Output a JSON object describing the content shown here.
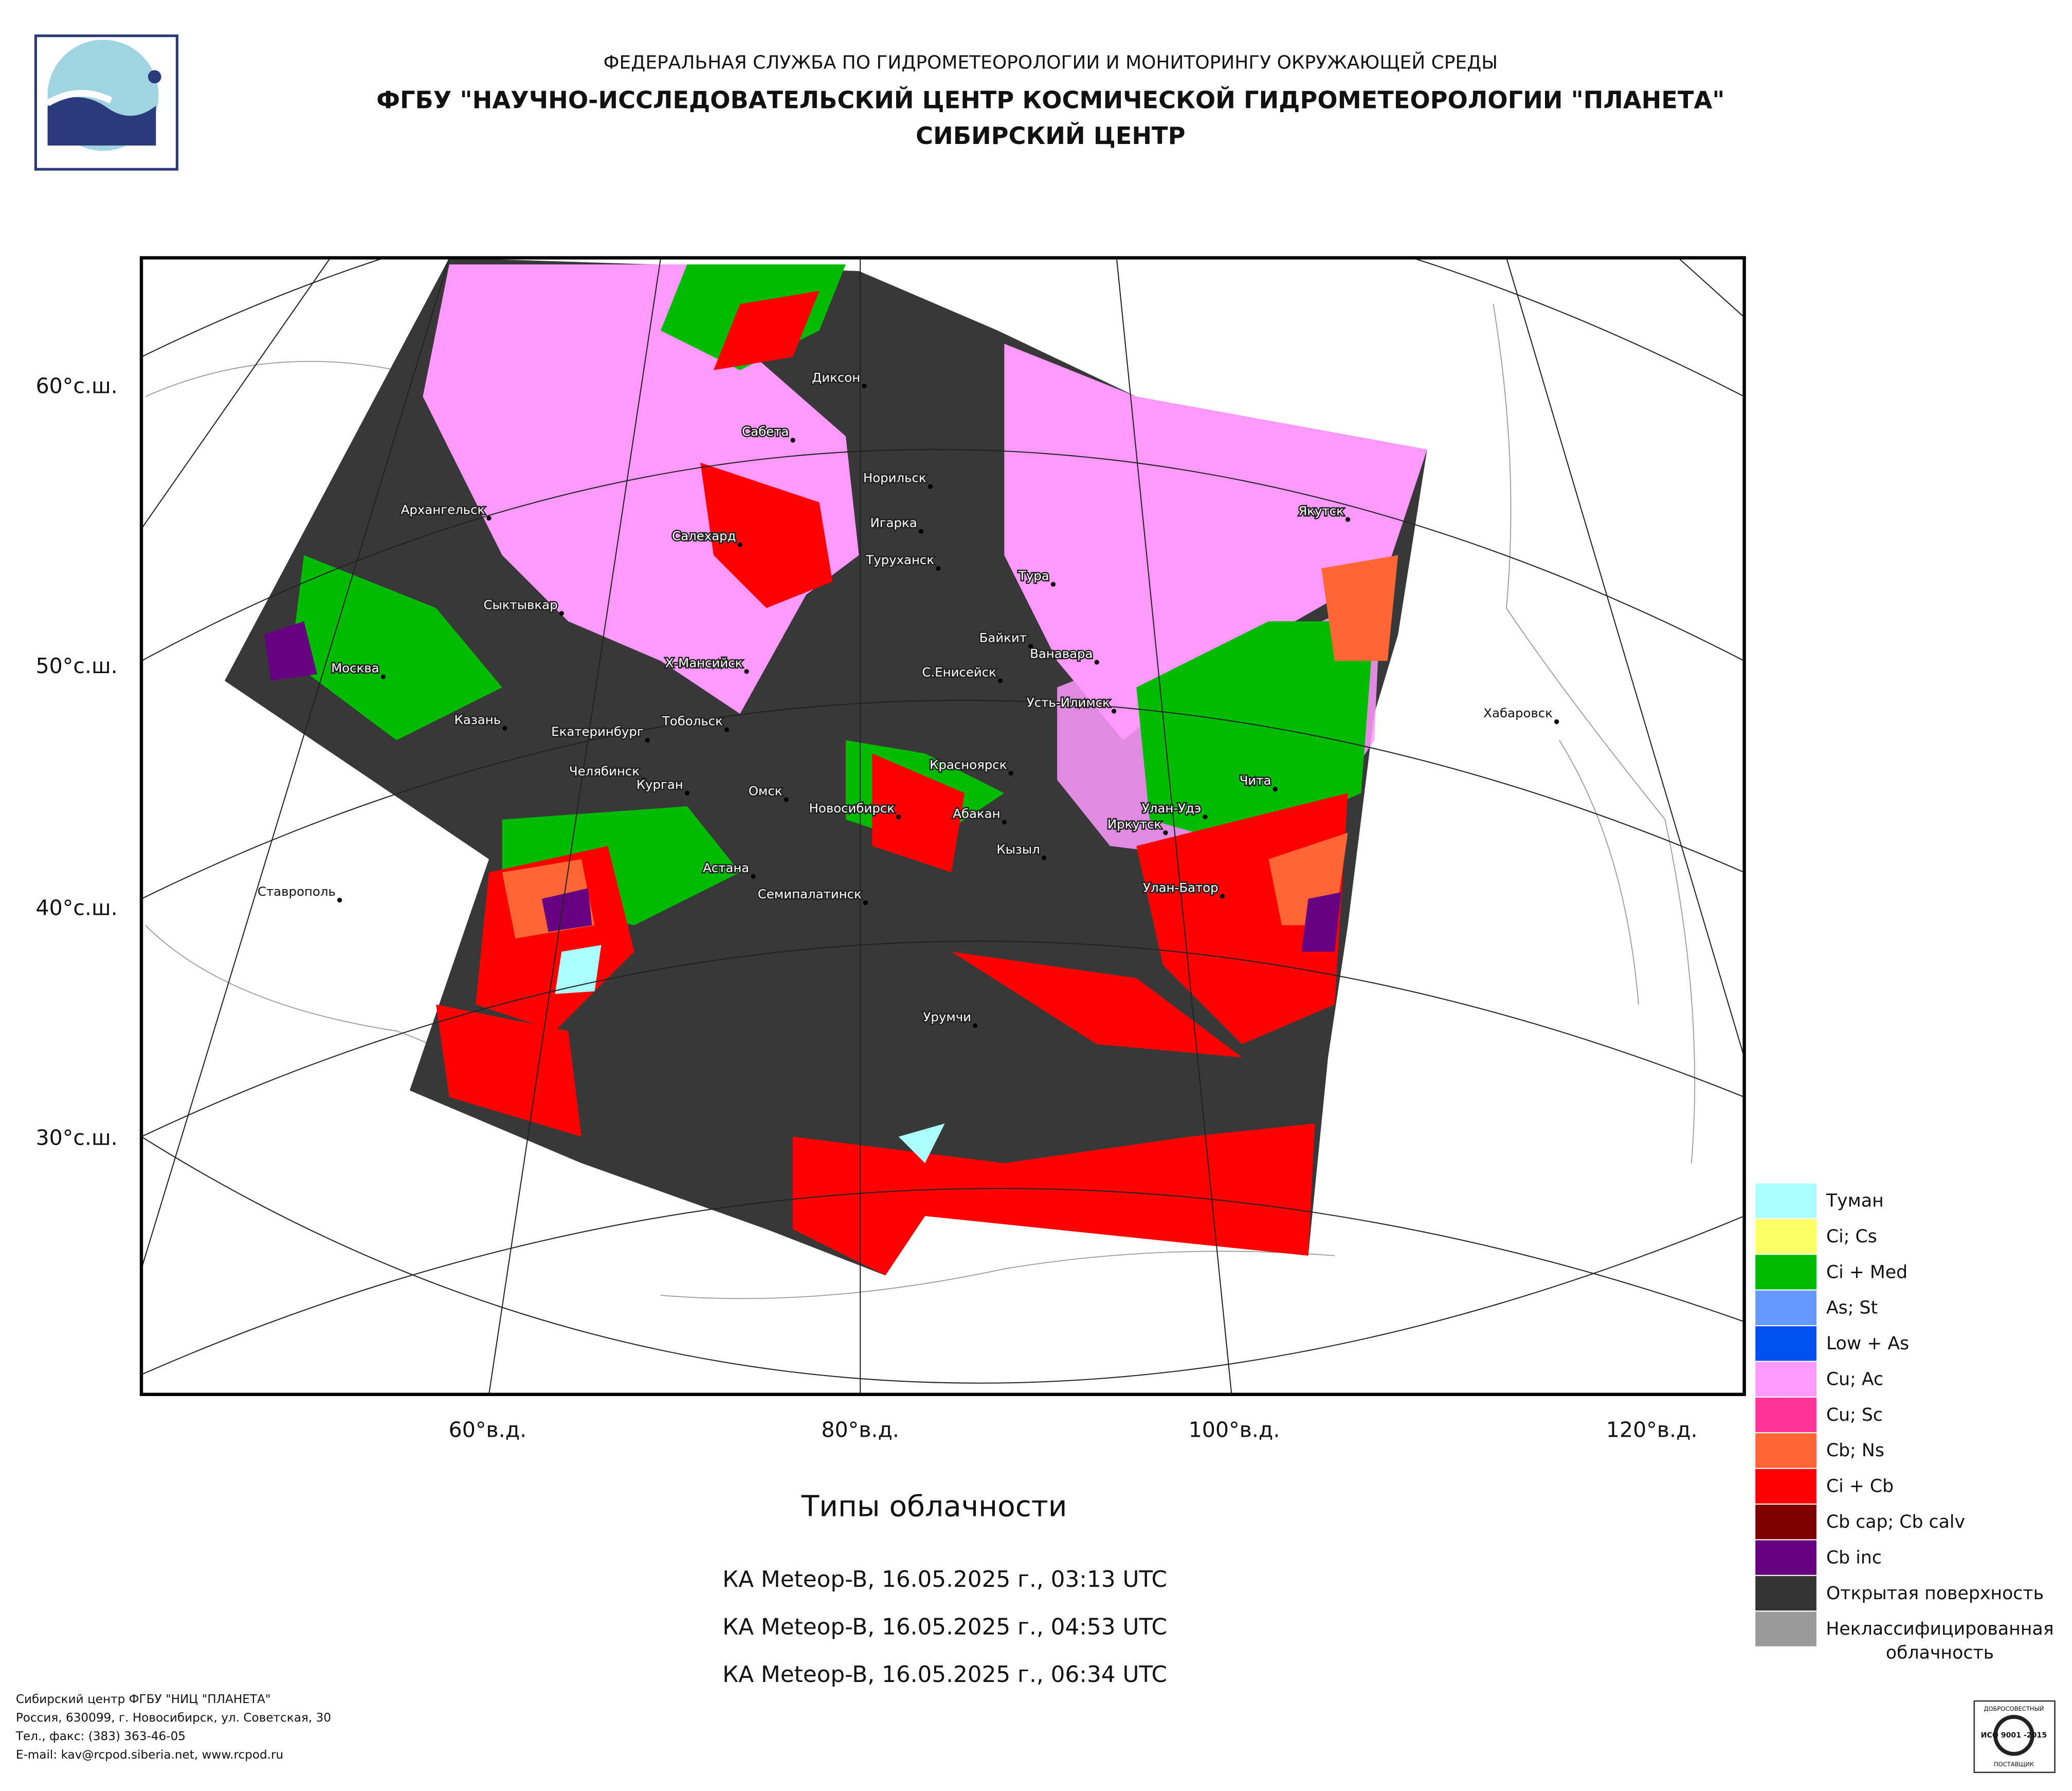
{
  "header": {
    "agency": "ФЕДЕРАЛЬНАЯ СЛУЖБА ПО ГИДРОМЕТЕОРОЛОГИИ И МОНИТОРИНГУ ОКРУЖАЮЩЕЙ СРЕДЫ",
    "institute": "ФГБУ \"НАУЧНО-ИССЛЕДОВАТЕЛЬСКИЙ ЦЕНТР КОСМИЧЕСКОЙ ГИДРОМЕТЕОРОЛОГИИ \"ПЛАНЕТА\"",
    "center": "СИБИРСКИЙ ЦЕНТР"
  },
  "map": {
    "lat_labels": [
      "60°с.ш.",
      "50°с.ш.",
      "40°с.ш.",
      "30°с.ш."
    ],
    "lon_labels": [
      "60°в.д.",
      "80°в.д.",
      "100°в.д.",
      "120°в.д."
    ],
    "cities": [
      "Диксон",
      "Сабета",
      "Норильск",
      "Архангельск",
      "Игарка",
      "Салехард",
      "Туруханск",
      "Тура",
      "Сыктывкар",
      "Байкит",
      "Ванавара",
      "Х-Мансийск",
      "С.Енисейск",
      "Москва",
      "Усть-Илимск",
      "Казань",
      "Тобольск",
      "Екатеринбург",
      "Челябинск",
      "Красноярск",
      "Курган",
      "Чита",
      "Омск",
      "Новосибирск",
      "Улан-Удэ",
      "Абакан",
      "Иркутск",
      "Кызыл",
      "Астана",
      "Ставрополь",
      "Улан-Батор",
      "Семипалатинск",
      "Хабаровск",
      "Якутск",
      "Урумчи"
    ]
  },
  "legend": {
    "items": [
      {
        "lines": [
          "Туман"
        ],
        "color": "#aaffff"
      },
      {
        "lines": [
          "Ci; Cs"
        ],
        "color": "#ffff66"
      },
      {
        "lines": [
          "Ci + Med"
        ],
        "color": "#00bb00"
      },
      {
        "lines": [
          "As; St"
        ],
        "color": "#6699ff"
      },
      {
        "lines": [
          "Low + As"
        ],
        "color": "#0050f0"
      },
      {
        "lines": [
          "Cu; Ac"
        ],
        "color": "#ff99ff"
      },
      {
        "lines": [
          "Cu; Sc"
        ],
        "color": "#ff3399"
      },
      {
        "lines": [
          "Cb; Ns"
        ],
        "color": "#ff6633"
      },
      {
        "lines": [
          "Ci + Cb"
        ],
        "color": "#ff0000"
      },
      {
        "lines": [
          "Cb cap; Cb calv"
        ],
        "color": "#800000"
      },
      {
        "lines": [
          "Cb inc"
        ],
        "color": "#660080"
      },
      {
        "lines": [
          "Открытая поверхность"
        ],
        "color": "#333333"
      },
      {
        "lines": [
          "Неклассифицированная",
          "облачность"
        ],
        "color": "#999999"
      }
    ]
  },
  "caption": {
    "title": "Типы облачности",
    "passes": [
      "КА Meteop-B, 16.05.2025 г., 03:13 UTC",
      "КА Meteop-B, 16.05.2025 г., 04:53 UTC",
      "КА Meteop-B, 16.05.2025 г., 06:34 UTC"
    ]
  },
  "footer": {
    "lines": [
      "Сибирский центр ФГБУ \"НИЦ \"ПЛАНЕТА\"",
      "Россия, 630099, г. Новосибирск, ул. Советская, 30",
      "Тел., факс: (383) 363-46-05",
      "E-mail: kav@rcpod.siberia.net, www.rcpod.ru"
    ]
  },
  "badge": {
    "top": "ДОБРОСОВЕСТНЫЙ",
    "standard": "ИСО 9001 -2015",
    "bottom": "ПОСТАВЩИК"
  }
}
